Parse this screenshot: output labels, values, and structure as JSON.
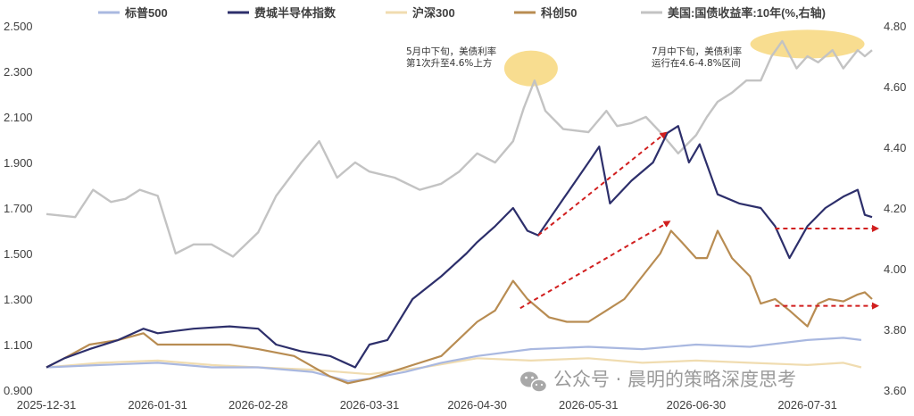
{
  "chart_data": {
    "type": "line",
    "x_ticks": [
      "2025-12-31",
      "2026-01-31",
      "2026-02-28",
      "2026-03-31",
      "2026-04-30",
      "2026-05-31",
      "2026-06-30",
      "2026-07-31"
    ],
    "x_range": [
      "2025-12-31",
      "2026-08-20"
    ],
    "y_left": {
      "ticks": [
        "0.900",
        "1.100",
        "1.300",
        "1.500",
        "1.700",
        "1.900",
        "2.100",
        "2.300",
        "2.500"
      ],
      "range": [
        0.9,
        2.5
      ]
    },
    "y_right": {
      "ticks": [
        "3.60",
        "3.80",
        "4.00",
        "4.20",
        "4.40",
        "4.60",
        "4.80"
      ],
      "range": [
        3.6,
        4.8
      ]
    },
    "legend_position": "top",
    "grid": false,
    "series": [
      {
        "name": "标普500",
        "color": "#a9b8e0",
        "axis": "left",
        "width": 2.2,
        "points": [
          [
            "2025-12-31",
            1.0
          ],
          [
            "2026-01-15",
            1.01
          ],
          [
            "2026-01-31",
            1.02
          ],
          [
            "2026-02-15",
            1.0
          ],
          [
            "2026-02-28",
            1.0
          ],
          [
            "2026-03-15",
            0.98
          ],
          [
            "2026-03-25",
            0.94
          ],
          [
            "2026-03-31",
            0.95
          ],
          [
            "2026-04-10",
            0.98
          ],
          [
            "2026-04-20",
            1.02
          ],
          [
            "2026-04-30",
            1.05
          ],
          [
            "2026-05-15",
            1.08
          ],
          [
            "2026-05-31",
            1.09
          ],
          [
            "2026-06-15",
            1.08
          ],
          [
            "2026-06-30",
            1.1
          ],
          [
            "2026-07-15",
            1.09
          ],
          [
            "2026-07-31",
            1.12
          ],
          [
            "2026-08-10",
            1.13
          ],
          [
            "2026-08-15",
            1.12
          ]
        ]
      },
      {
        "name": "费城半导体指数",
        "color": "#2d2f6b",
        "axis": "left",
        "width": 2.2,
        "points": [
          [
            "2025-12-31",
            1.0
          ],
          [
            "2026-01-05",
            1.04
          ],
          [
            "2026-01-12",
            1.08
          ],
          [
            "2026-01-20",
            1.12
          ],
          [
            "2026-01-27",
            1.17
          ],
          [
            "2026-01-31",
            1.15
          ],
          [
            "2026-02-05",
            1.16
          ],
          [
            "2026-02-10",
            1.17
          ],
          [
            "2026-02-20",
            1.18
          ],
          [
            "2026-02-28",
            1.17
          ],
          [
            "2026-03-05",
            1.1
          ],
          [
            "2026-03-12",
            1.07
          ],
          [
            "2026-03-20",
            1.05
          ],
          [
            "2026-03-27",
            1.0
          ],
          [
            "2026-03-31",
            1.1
          ],
          [
            "2026-04-05",
            1.12
          ],
          [
            "2026-04-12",
            1.3
          ],
          [
            "2026-04-20",
            1.4
          ],
          [
            "2026-04-27",
            1.5
          ],
          [
            "2026-04-30",
            1.55
          ],
          [
            "2026-05-05",
            1.62
          ],
          [
            "2026-05-10",
            1.7
          ],
          [
            "2026-05-14",
            1.6
          ],
          [
            "2026-05-17",
            1.58
          ],
          [
            "2026-05-24",
            1.74
          ],
          [
            "2026-05-31",
            1.9
          ],
          [
            "2026-06-03",
            1.97
          ],
          [
            "2026-06-06",
            1.72
          ],
          [
            "2026-06-12",
            1.82
          ],
          [
            "2026-06-18",
            1.9
          ],
          [
            "2026-06-22",
            2.03
          ],
          [
            "2026-06-25",
            2.06
          ],
          [
            "2026-06-28",
            1.9
          ],
          [
            "2026-07-01",
            1.98
          ],
          [
            "2026-07-06",
            1.76
          ],
          [
            "2026-07-12",
            1.72
          ],
          [
            "2026-07-18",
            1.7
          ],
          [
            "2026-07-22",
            1.62
          ],
          [
            "2026-07-26",
            1.48
          ],
          [
            "2026-07-31",
            1.62
          ],
          [
            "2026-08-05",
            1.7
          ],
          [
            "2026-08-10",
            1.75
          ],
          [
            "2026-08-14",
            1.78
          ],
          [
            "2026-08-16",
            1.67
          ],
          [
            "2026-08-18",
            1.66
          ]
        ]
      },
      {
        "name": "沪深300",
        "color": "#f0dcb0",
        "axis": "left",
        "width": 2.2,
        "points": [
          [
            "2025-12-31",
            1.0
          ],
          [
            "2026-01-15",
            1.02
          ],
          [
            "2026-01-31",
            1.03
          ],
          [
            "2026-02-15",
            1.01
          ],
          [
            "2026-02-28",
            1.0
          ],
          [
            "2026-03-15",
            0.99
          ],
          [
            "2026-03-31",
            0.97
          ],
          [
            "2026-04-15",
            1.0
          ],
          [
            "2026-04-30",
            1.04
          ],
          [
            "2026-05-15",
            1.03
          ],
          [
            "2026-05-31",
            1.04
          ],
          [
            "2026-06-15",
            1.02
          ],
          [
            "2026-06-30",
            1.03
          ],
          [
            "2026-07-15",
            1.02
          ],
          [
            "2026-07-31",
            1.01
          ],
          [
            "2026-08-10",
            1.02
          ],
          [
            "2026-08-15",
            1.0
          ]
        ]
      },
      {
        "name": "科创50",
        "color": "#b88c52",
        "axis": "left",
        "width": 2.2,
        "points": [
          [
            "2025-12-31",
            1.0
          ],
          [
            "2026-01-05",
            1.04
          ],
          [
            "2026-01-12",
            1.1
          ],
          [
            "2026-01-20",
            1.12
          ],
          [
            "2026-01-27",
            1.15
          ],
          [
            "2026-01-31",
            1.1
          ],
          [
            "2026-02-10",
            1.1
          ],
          [
            "2026-02-20",
            1.1
          ],
          [
            "2026-02-28",
            1.08
          ],
          [
            "2026-03-10",
            1.05
          ],
          [
            "2026-03-20",
            0.96
          ],
          [
            "2026-03-25",
            0.93
          ],
          [
            "2026-03-31",
            0.95
          ],
          [
            "2026-04-10",
            1.0
          ],
          [
            "2026-04-20",
            1.05
          ],
          [
            "2026-04-30",
            1.2
          ],
          [
            "2026-05-05",
            1.25
          ],
          [
            "2026-05-10",
            1.38
          ],
          [
            "2026-05-14",
            1.3
          ],
          [
            "2026-05-20",
            1.22
          ],
          [
            "2026-05-25",
            1.2
          ],
          [
            "2026-05-31",
            1.2
          ],
          [
            "2026-06-05",
            1.25
          ],
          [
            "2026-06-10",
            1.3
          ],
          [
            "2026-06-15",
            1.4
          ],
          [
            "2026-06-20",
            1.5
          ],
          [
            "2026-06-23",
            1.6
          ],
          [
            "2026-06-26",
            1.55
          ],
          [
            "2026-06-30",
            1.48
          ],
          [
            "2026-07-03",
            1.48
          ],
          [
            "2026-07-06",
            1.6
          ],
          [
            "2026-07-10",
            1.48
          ],
          [
            "2026-07-15",
            1.4
          ],
          [
            "2026-07-18",
            1.28
          ],
          [
            "2026-07-22",
            1.3
          ],
          [
            "2026-07-26",
            1.25
          ],
          [
            "2026-07-31",
            1.18
          ],
          [
            "2026-08-03",
            1.28
          ],
          [
            "2026-08-06",
            1.3
          ],
          [
            "2026-08-10",
            1.29
          ],
          [
            "2026-08-14",
            1.32
          ],
          [
            "2026-08-16",
            1.33
          ],
          [
            "2026-08-18",
            1.3
          ]
        ]
      },
      {
        "name": "美国:国债收益率:10年(%,右轴)",
        "color": "#c3c3c3",
        "axis": "right",
        "width": 2.4,
        "points": [
          [
            "2025-12-31",
            4.18
          ],
          [
            "2026-01-08",
            4.17
          ],
          [
            "2026-01-13",
            4.26
          ],
          [
            "2026-01-18",
            4.22
          ],
          [
            "2026-01-22",
            4.23
          ],
          [
            "2026-01-26",
            4.26
          ],
          [
            "2026-01-31",
            4.24
          ],
          [
            "2026-02-05",
            4.05
          ],
          [
            "2026-02-10",
            4.08
          ],
          [
            "2026-02-15",
            4.08
          ],
          [
            "2026-02-21",
            4.04
          ],
          [
            "2026-02-28",
            4.12
          ],
          [
            "2026-03-05",
            4.24
          ],
          [
            "2026-03-12",
            4.35
          ],
          [
            "2026-03-17",
            4.42
          ],
          [
            "2026-03-22",
            4.3
          ],
          [
            "2026-03-27",
            4.35
          ],
          [
            "2026-03-31",
            4.32
          ],
          [
            "2026-04-07",
            4.3
          ],
          [
            "2026-04-14",
            4.26
          ],
          [
            "2026-04-20",
            4.28
          ],
          [
            "2026-04-25",
            4.32
          ],
          [
            "2026-04-30",
            4.38
          ],
          [
            "2026-05-05",
            4.35
          ],
          [
            "2026-05-10",
            4.42
          ],
          [
            "2026-05-13",
            4.53
          ],
          [
            "2026-05-16",
            4.62
          ],
          [
            "2026-05-19",
            4.52
          ],
          [
            "2026-05-24",
            4.46
          ],
          [
            "2026-05-31",
            4.45
          ],
          [
            "2026-06-05",
            4.52
          ],
          [
            "2026-06-08",
            4.47
          ],
          [
            "2026-06-12",
            4.48
          ],
          [
            "2026-06-16",
            4.5
          ],
          [
            "2026-06-20",
            4.45
          ],
          [
            "2026-06-25",
            4.38
          ],
          [
            "2026-06-30",
            4.44
          ],
          [
            "2026-07-03",
            4.5
          ],
          [
            "2026-07-06",
            4.55
          ],
          [
            "2026-07-10",
            4.58
          ],
          [
            "2026-07-14",
            4.62
          ],
          [
            "2026-07-18",
            4.62
          ],
          [
            "2026-07-21",
            4.7
          ],
          [
            "2026-07-24",
            4.75
          ],
          [
            "2026-07-28",
            4.66
          ],
          [
            "2026-07-31",
            4.7
          ],
          [
            "2026-08-03",
            4.68
          ],
          [
            "2026-08-07",
            4.72
          ],
          [
            "2026-08-10",
            4.66
          ],
          [
            "2026-08-14",
            4.72
          ],
          [
            "2026-08-16",
            4.7
          ],
          [
            "2026-08-18",
            4.72
          ]
        ]
      }
    ],
    "annotations": [
      {
        "text": [
          "5月中下旬，美债利率",
          "第1次升至4.6%上方"
        ]
      },
      {
        "text": [
          "7月中下旬，美债利率",
          "运行在4.6-4.8%区间"
        ]
      }
    ]
  },
  "watermark": "公众号 · 晨明的策略深度思考",
  "colors": {
    "highlight": "#f7d77c",
    "arrow": "#d11f1f",
    "axis": "#404040"
  }
}
